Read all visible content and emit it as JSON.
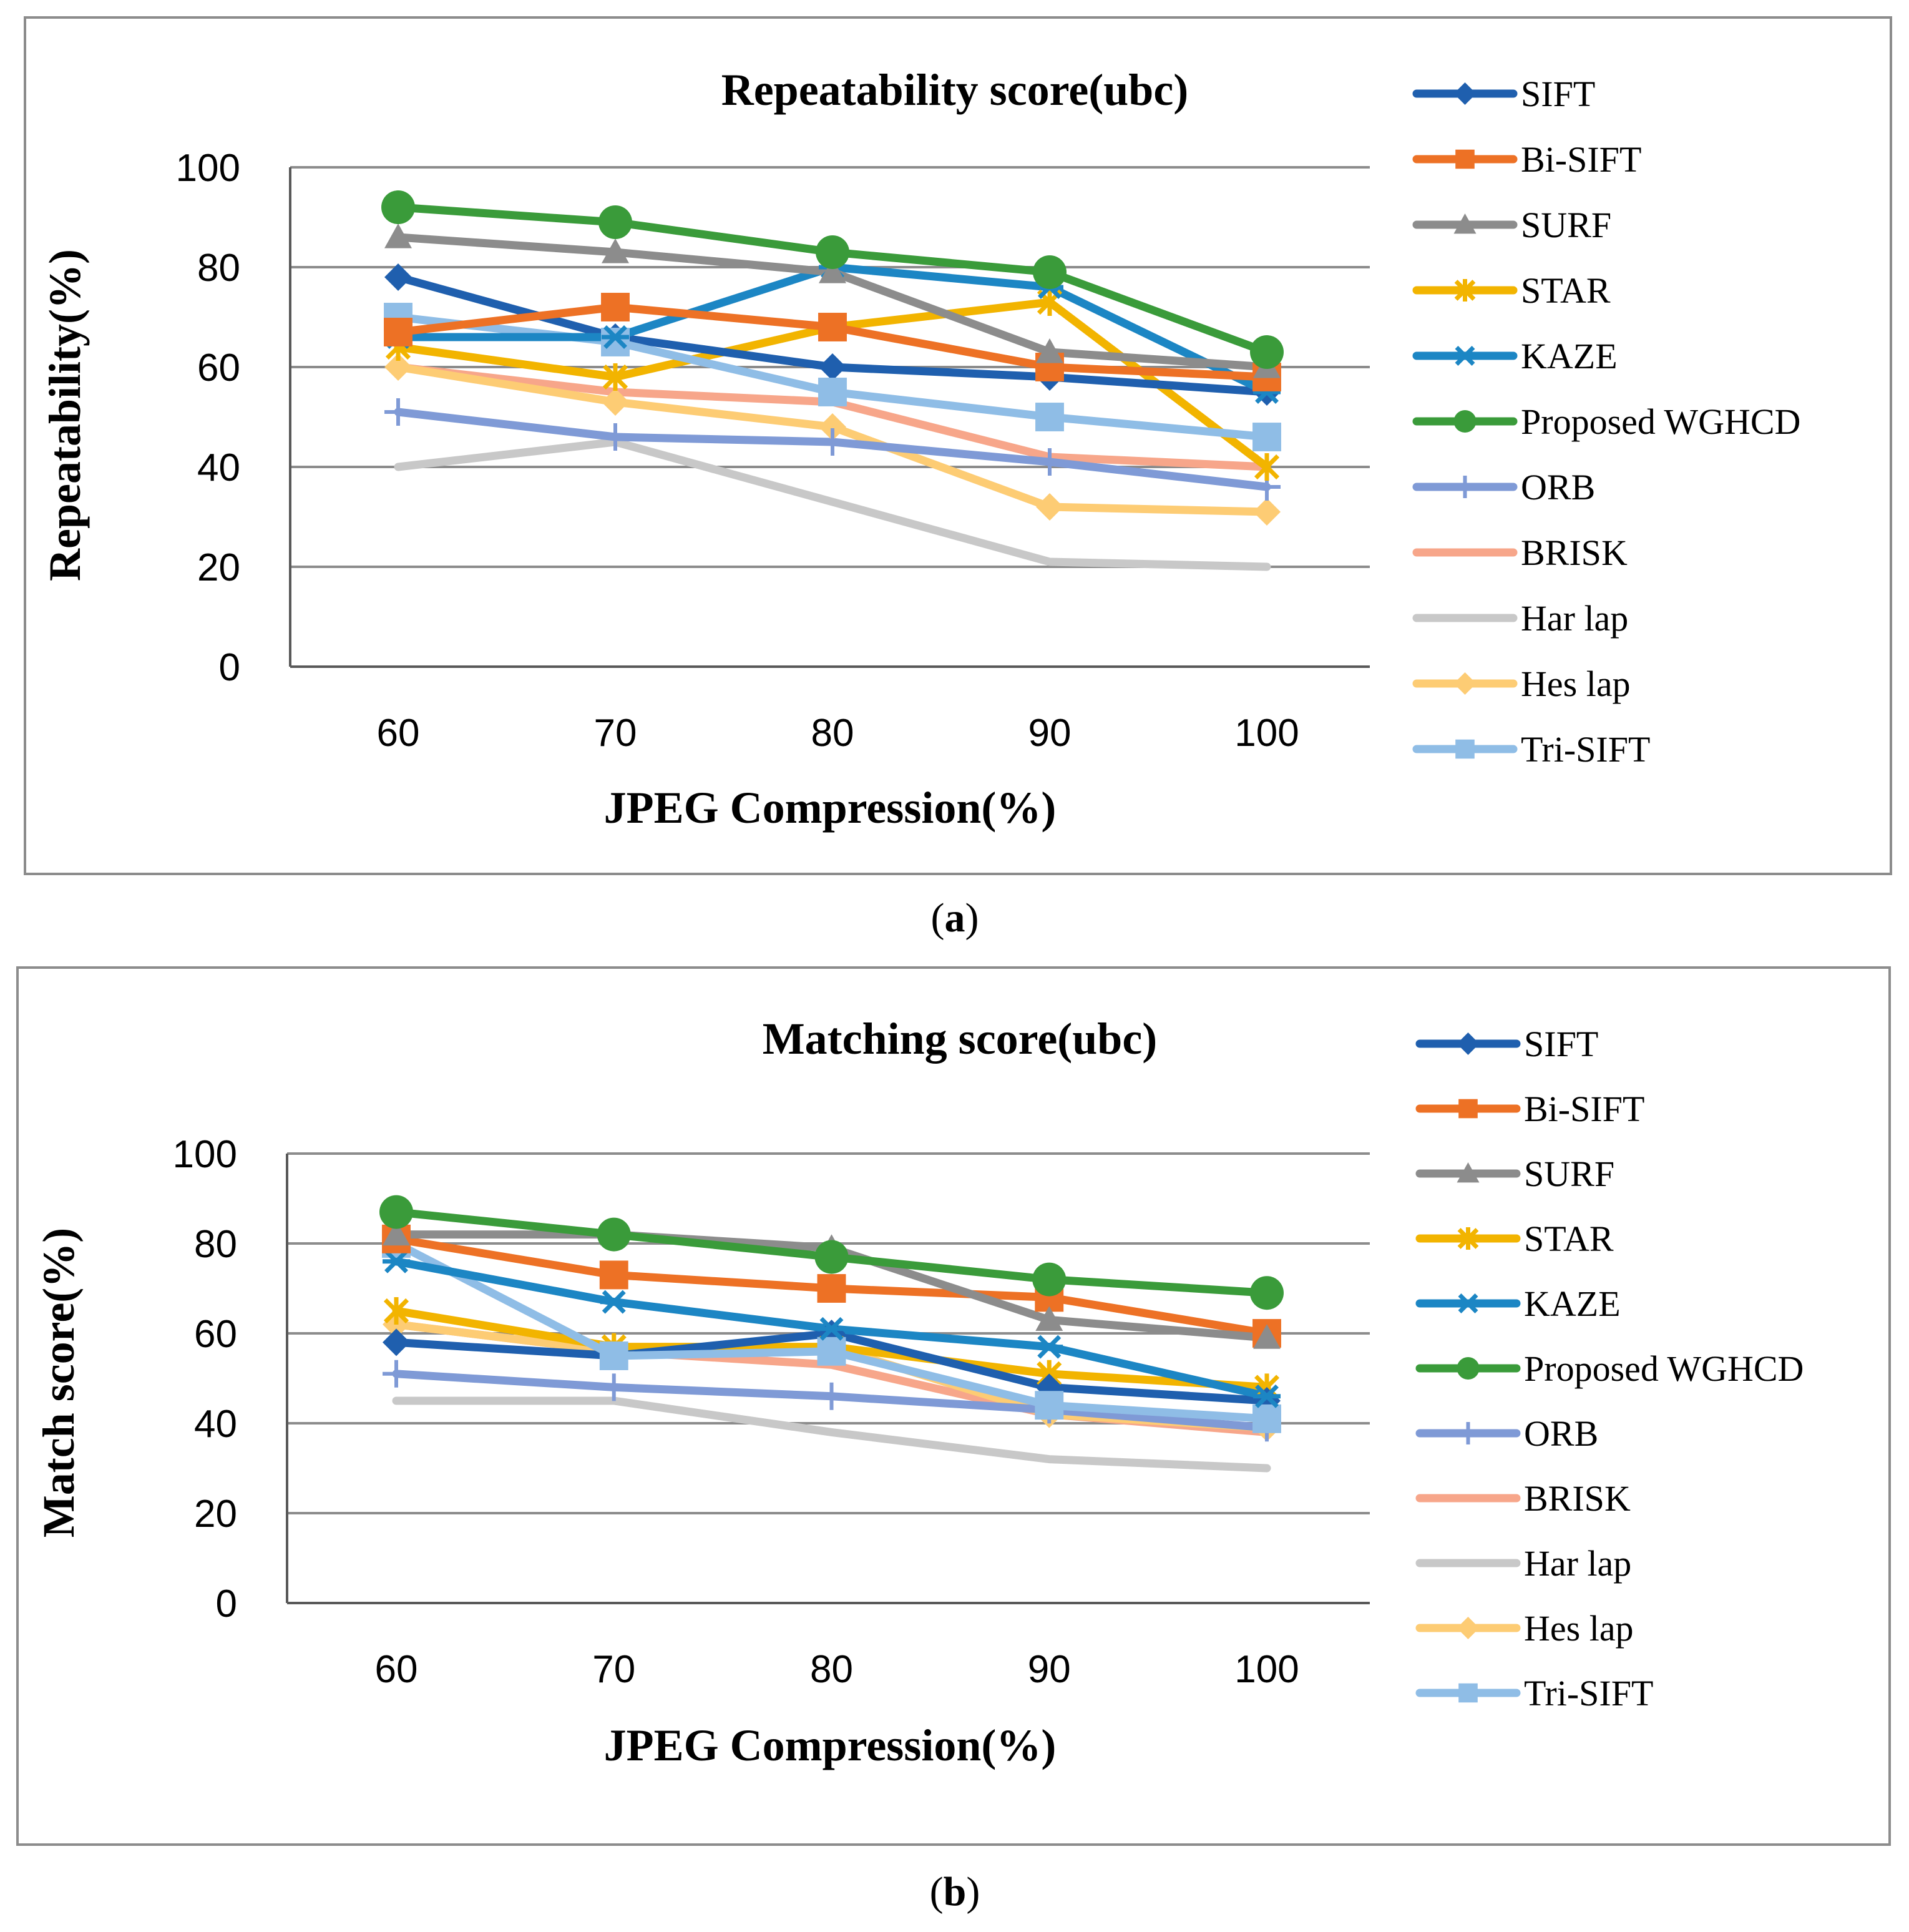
{
  "chart_data": [
    {
      "type": "line",
      "title": "Repeatability score(ubc)",
      "xlabel": "JPEG Compression(%)",
      "ylabel": "Repeatability(%)",
      "caption_letter": "a",
      "categories": [
        "60",
        "70",
        "80",
        "90",
        "100"
      ],
      "ylim": [
        0,
        100
      ],
      "yticks": [
        0,
        20,
        40,
        60,
        80,
        100
      ],
      "ytick_labels": [
        "0",
        "20",
        "40",
        "60",
        "80",
        "100"
      ],
      "grid": true,
      "legend_position": "right",
      "series": [
        {
          "name": "SIFT",
          "color": "#1f5fae",
          "marker": "diamond",
          "values": [
            78,
            66,
            60,
            58,
            55
          ]
        },
        {
          "name": "Bi-SIFT",
          "color": "#ed7125",
          "marker": "square",
          "values": [
            67,
            72,
            68,
            60,
            58
          ]
        },
        {
          "name": "SURF",
          "color": "#8c8c8c",
          "marker": "triangle",
          "values": [
            86,
            83,
            79,
            63,
            60
          ]
        },
        {
          "name": "STAR",
          "color": "#f2b400",
          "marker": "star",
          "values": [
            64,
            58,
            68,
            73,
            40
          ]
        },
        {
          "name": "KAZE",
          "color": "#1c86c4",
          "marker": "asterisk",
          "values": [
            66,
            66,
            80,
            76,
            55
          ]
        },
        {
          "name": "Proposed WGHCD",
          "color": "#3a9b3a",
          "marker": "circle",
          "values": [
            92,
            89,
            83,
            79,
            63
          ]
        },
        {
          "name": "ORB",
          "color": "#7f9ad6",
          "marker": "plus",
          "values": [
            51,
            46,
            45,
            41,
            36
          ]
        },
        {
          "name": "BRISK",
          "color": "#f7a68a",
          "marker": "dash",
          "values": [
            60,
            55,
            53,
            42,
            40
          ]
        },
        {
          "name": "Har lap",
          "color": "#c8c8c8",
          "marker": "dash",
          "values": [
            40,
            45,
            33,
            21,
            20
          ]
        },
        {
          "name": "Hes lap",
          "color": "#fdcc74",
          "marker": "diamond",
          "values": [
            60,
            53,
            48,
            32,
            31
          ]
        },
        {
          "name": "Tri-SIFT",
          "color": "#8fbde6",
          "marker": "square",
          "values": [
            70,
            65,
            55,
            50,
            46
          ]
        }
      ]
    },
    {
      "type": "line",
      "title": "Matching score(ubc)",
      "xlabel": "JPEG Compression(%)",
      "ylabel": "Match score(%)",
      "caption_letter": "b",
      "categories": [
        "60",
        "70",
        "80",
        "90",
        "100"
      ],
      "ylim": [
        0,
        100
      ],
      "yticks": [
        0,
        20,
        40,
        60,
        80,
        100
      ],
      "ytick_labels": [
        "0",
        "20",
        "40",
        "60",
        "80",
        "100"
      ],
      "grid": true,
      "legend_position": "right",
      "series": [
        {
          "name": "SIFT",
          "color": "#1f5fae",
          "marker": "diamond",
          "values": [
            58,
            55,
            60,
            48,
            45
          ]
        },
        {
          "name": "Bi-SIFT",
          "color": "#ed7125",
          "marker": "square",
          "values": [
            81,
            73,
            70,
            68,
            60
          ]
        },
        {
          "name": "SURF",
          "color": "#8c8c8c",
          "marker": "triangle",
          "values": [
            82,
            82,
            79,
            63,
            59
          ]
        },
        {
          "name": "STAR",
          "color": "#f2b400",
          "marker": "star",
          "values": [
            65,
            57,
            57,
            51,
            48
          ]
        },
        {
          "name": "KAZE",
          "color": "#1c86c4",
          "marker": "asterisk",
          "values": [
            76,
            67,
            61,
            57,
            46
          ]
        },
        {
          "name": "Proposed WGHCD",
          "color": "#3a9b3a",
          "marker": "circle",
          "values": [
            87,
            82,
            77,
            72,
            69
          ]
        },
        {
          "name": "ORB",
          "color": "#7f9ad6",
          "marker": "plus",
          "values": [
            51,
            48,
            46,
            43,
            39
          ]
        },
        {
          "name": "BRISK",
          "color": "#f7a68a",
          "marker": "dash",
          "values": [
            62,
            56,
            53,
            42,
            38
          ]
        },
        {
          "name": "Har lap",
          "color": "#c8c8c8",
          "marker": "dash",
          "values": [
            45,
            45,
            38,
            32,
            30
          ]
        },
        {
          "name": "Hes lap",
          "color": "#fdcc74",
          "marker": "diamond",
          "values": [
            62,
            56,
            57,
            42,
            39
          ]
        },
        {
          "name": "Tri-SIFT",
          "color": "#8fbde6",
          "marker": "square",
          "values": [
            80,
            55,
            56,
            44,
            41
          ]
        }
      ]
    }
  ]
}
